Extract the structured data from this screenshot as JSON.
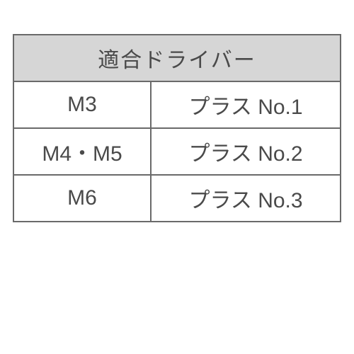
{
  "table": {
    "border_color": "#6a6a6a",
    "header_bg": "#d6d6d6",
    "header_text_color": "#4a4a4a",
    "cell_text_color": "#4a4a4a",
    "header": "適合ドライバー",
    "rows": [
      {
        "size": "M3",
        "driver": "プラス No.1"
      },
      {
        "size": "M4・M5",
        "driver": "プラス No.2"
      },
      {
        "size": "M6",
        "driver": "プラス No.3"
      }
    ]
  }
}
